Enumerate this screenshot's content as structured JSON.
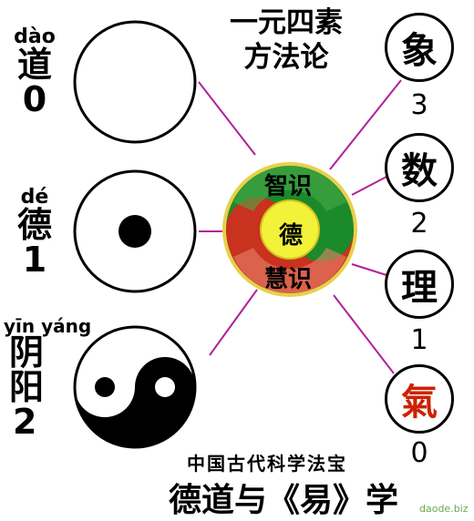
{
  "title_top": [
    "一元四素",
    "方法论"
  ],
  "left_items": [
    {
      "pinyin": "dào",
      "han": [
        "道"
      ],
      "number": "0"
    },
    {
      "pinyin": "dé",
      "han": [
        "德"
      ],
      "number": "1"
    },
    {
      "pinyin": "yīn yáng",
      "han": [
        "阴",
        "阳"
      ],
      "number": "2"
    }
  ],
  "right_items": [
    {
      "char": "象",
      "number": "3",
      "color": "#000000"
    },
    {
      "char": "数",
      "number": "2",
      "color": "#000000"
    },
    {
      "char": "理",
      "number": "1",
      "color": "#000000"
    },
    {
      "char": "氣",
      "number": "0",
      "color": "#cc2200"
    }
  ],
  "center": {
    "top": "智识",
    "middle": "德",
    "bottom": "慧识"
  },
  "bottom": {
    "small": "中国古代科学法宝",
    "big": "德道与《易》学"
  },
  "brand": "daode.biz",
  "colors": {
    "connector": "#b0209b",
    "center_green": "#1a8a2a",
    "center_red": "#c8321e",
    "center_yellow": "#f2f23a",
    "accent_red": "#cc2200"
  }
}
